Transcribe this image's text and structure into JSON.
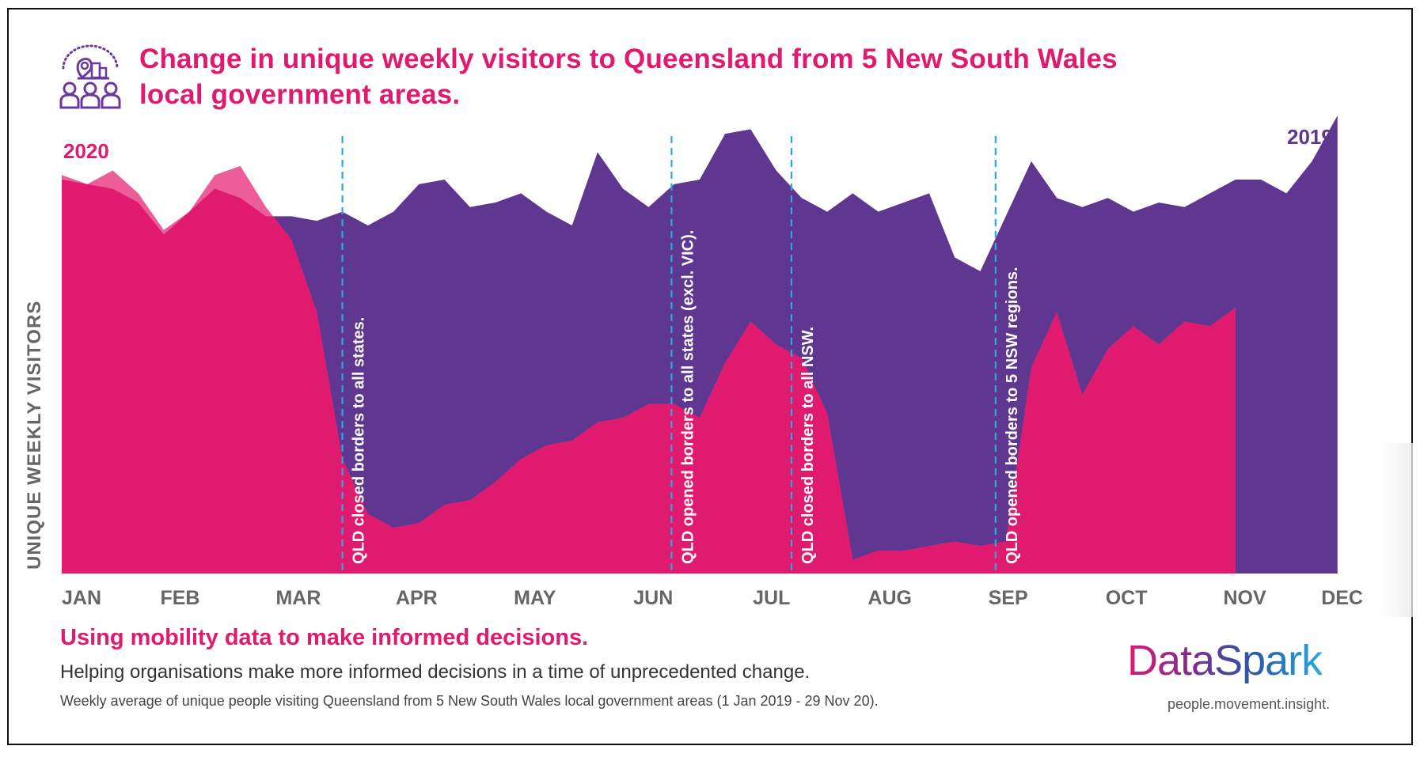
{
  "header": {
    "title_line1": "Change in unique weekly visitors to Queensland from 5 New South Wales",
    "title_line2": "local government areas.",
    "icon": "visitors-location-icon"
  },
  "footer": {
    "headline": "Using mobility data to make informed decisions.",
    "subtitle": "Helping organisations make more informed decisions in a time of unprecedented change.",
    "note": "Weekly average of unique people visiting Queensland from 5 New South Wales local government areas (1 Jan 2019 - 29 Nov 20).",
    "brand": "DataSpark",
    "tagline": "people.movement.insight."
  },
  "colors": {
    "series_2020": "#e01a6e",
    "series_2020_overlap": "#ec5d9a",
    "series_2019": "#5f3690",
    "event_line": "#2aa8df",
    "axis_text": "#666666"
  },
  "chart_data": {
    "type": "area",
    "title": "Change in unique weekly visitors to Queensland from 5 New South Wales local government areas.",
    "xlabel": "",
    "ylabel": "UNIQUE WEEKLY VISITORS",
    "y_units": "relative index (no numeric axis shown; 0 = baseline, 100 = chart peak)",
    "ylim": [
      0,
      100
    ],
    "grid": false,
    "x_range_weeks": [
      0,
      51
    ],
    "categories": [
      "JAN",
      "FEB",
      "MAR",
      "APR",
      "MAY",
      "JUN",
      "JUL",
      "AUG",
      "SEP",
      "OCT",
      "NOV",
      "DEC"
    ],
    "series": [
      {
        "name": "2019",
        "label": "2019",
        "values": [
          86,
          85,
          84,
          81,
          74,
          79,
          84,
          82,
          78,
          78,
          77,
          79,
          76,
          79,
          85,
          86,
          80,
          81,
          83,
          79,
          76,
          92,
          84,
          80,
          85,
          86,
          96,
          97,
          88,
          82,
          79,
          83,
          79,
          81,
          83,
          69,
          66,
          78,
          90,
          82,
          80,
          82,
          79,
          81,
          80,
          83,
          86,
          86,
          83,
          90,
          100
        ]
      },
      {
        "name": "2020",
        "label": "2020",
        "values": [
          87,
          85,
          88,
          83,
          75,
          79,
          87,
          89,
          80,
          73,
          57,
          25,
          13,
          10,
          11,
          15,
          16,
          20,
          25,
          28,
          29,
          33,
          34,
          37,
          37,
          34,
          46,
          55,
          50,
          47,
          35,
          3,
          5,
          5,
          6,
          7,
          6,
          7,
          45,
          57,
          39,
          49,
          54,
          50,
          55,
          54,
          58
        ]
      }
    ],
    "annotations": [
      {
        "week": 11,
        "text": "QLD closed borders to all states."
      },
      {
        "week": 23.9,
        "text": "QLD opened borders to all states (excl. VIC)."
      },
      {
        "week": 28.6,
        "text": "QLD closed borders to all NSW."
      },
      {
        "week": 36.6,
        "text": "QLD opened borders to 5 NSW regions."
      }
    ],
    "series_labels": {
      "2020": "top-left",
      "2019": "top-right"
    }
  }
}
